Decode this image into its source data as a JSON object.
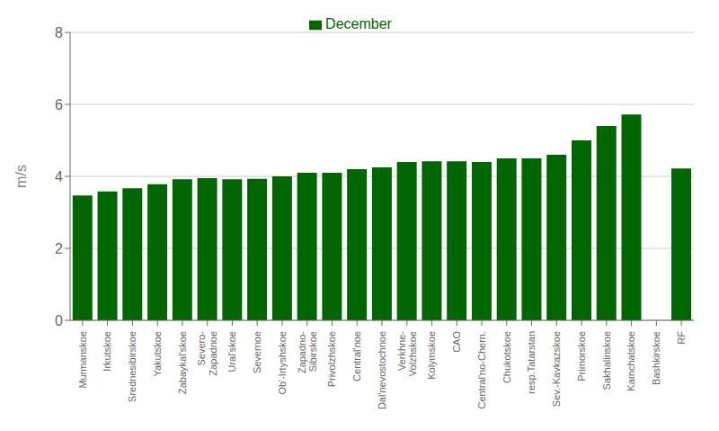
{
  "chart_data": {
    "type": "bar",
    "categories": [
      "Murmanskoe",
      "Irkutskoe",
      "Srednesibirskoe",
      "Yakutskoe",
      "Zabaykal'skoe",
      "Severo-\nZapadnoe",
      "Ural'skoe",
      "Severnoe",
      "Ob'-Irtyshskoe",
      "Zapadno-\nSibirskoe",
      "Privolzhskoe",
      "Central'noe",
      "Dal'nevostochnoe",
      "Verkhne-\nVolzhskoe",
      "Kolymskoe",
      "CAO",
      "Central'no-Chern.",
      "Chukotskoe",
      "resp.Tatarstan",
      "Sev.-Kavkazskoe",
      "Primorskoe",
      "Sakhalinskoe",
      "Kamchatskoe",
      "Bashkirskoe",
      "RF"
    ],
    "series": [
      {
        "name": "December",
        "color": "#006600",
        "values": [
          3.47,
          3.58,
          3.67,
          3.78,
          3.92,
          3.95,
          3.92,
          3.93,
          4.0,
          4.1,
          4.1,
          4.2,
          4.25,
          4.4,
          4.42,
          4.42,
          4.4,
          4.5,
          4.5,
          4.6,
          5.0,
          5.4,
          5.72,
          0.0,
          4.22
        ]
      }
    ],
    "colors": [
      "#006600",
      "#006600",
      "#006600",
      "#006600",
      "#006600",
      "#006600",
      "#006600",
      "#006600",
      "#006600",
      "#006600",
      "#006600",
      "#006600",
      "#006600",
      "#006600",
      "#006600",
      "#006600",
      "#006600",
      "#006600",
      "#006600",
      "#006600",
      "#006600",
      "#006600",
      "#006600",
      "#c0c0c0",
      "#006600"
    ],
    "ylabel": "m/s",
    "ylim": [
      0,
      8
    ],
    "yticks": [
      0,
      2,
      4,
      6,
      8
    ],
    "grid": true,
    "legend": "top"
  }
}
